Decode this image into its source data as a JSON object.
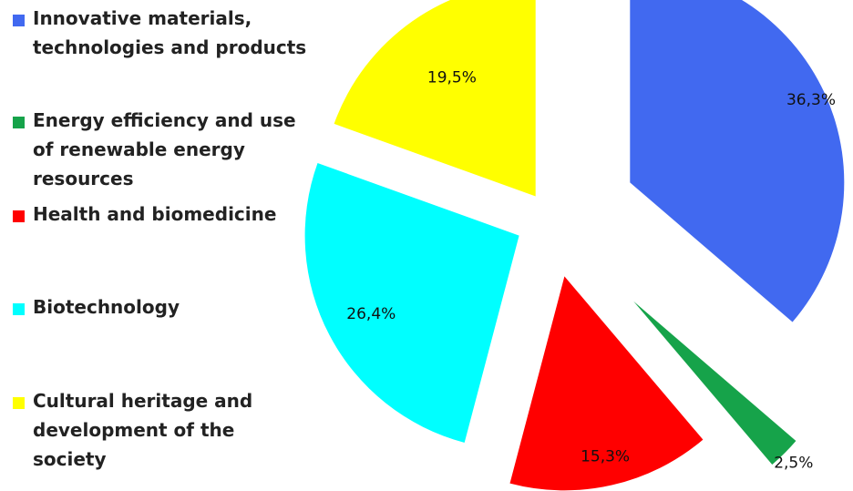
{
  "chart_data": {
    "type": "pie",
    "title": "",
    "legend_placement": "left",
    "exploded": true,
    "slices": [
      {
        "label": "Innovative materials, technologies and products",
        "value": 36.3,
        "display": "36,3%",
        "color": "#4169F0"
      },
      {
        "label": "Energy efficiency and use of renewable energy resources",
        "value": 2.5,
        "display": "2,5%",
        "color": "#16A34A"
      },
      {
        "label": "Health and biomedicine",
        "value": 15.3,
        "display": "15,3%",
        "color": "#FF0000"
      },
      {
        "label": "Biotechnology",
        "value": 26.4,
        "display": "26,4%",
        "color": "#00FFFF"
      },
      {
        "label": "Cultural heritage and development of the society",
        "value": 19.5,
        "display": "19,5%",
        "color": "#FFFF00"
      }
    ]
  }
}
